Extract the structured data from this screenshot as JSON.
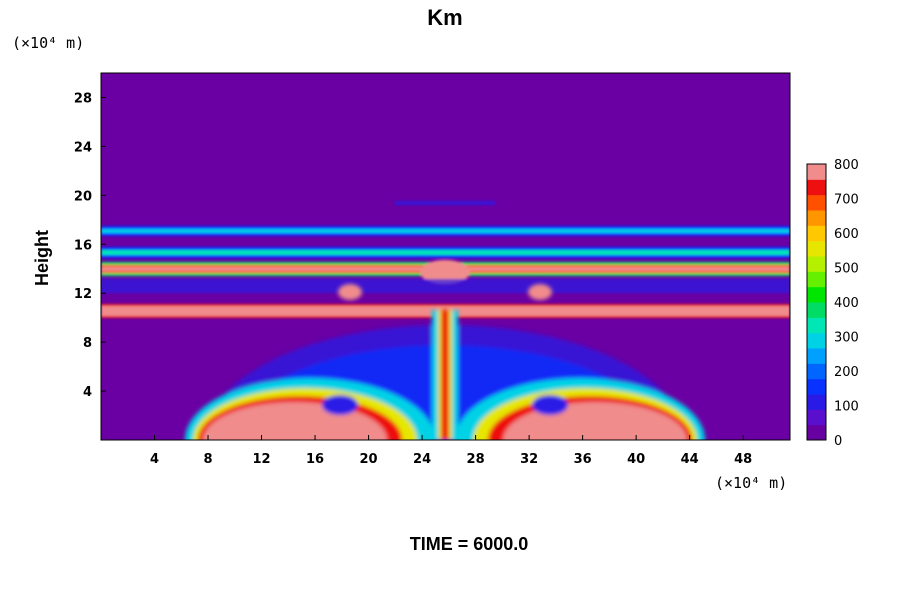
{
  "chart_data": {
    "type": "heatmap",
    "title": "Km",
    "ylabel": "Height",
    "y_unit": "(×10⁴ m)",
    "x_unit": "(×10⁴ m)",
    "xlim": [
      0,
      51.5
    ],
    "ylim": [
      0,
      30
    ],
    "x_ticks": [
      4,
      8,
      12,
      16,
      20,
      24,
      28,
      32,
      36,
      40,
      44,
      48
    ],
    "y_ticks": [
      4,
      8,
      12,
      16,
      20,
      24,
      28
    ],
    "grid": false,
    "colorbar": {
      "placement": "right",
      "range": [
        0,
        800
      ],
      "step": 50,
      "tick_labels": [
        0,
        100,
        200,
        300,
        400,
        500,
        600,
        700,
        800
      ],
      "colors": [
        "#6600a0",
        "#5a0fcf",
        "#2a1ae6",
        "#0a32ff",
        "#0066ff",
        "#00a0ff",
        "#00d2e6",
        "#00e6b4",
        "#00dc64",
        "#00e600",
        "#64f000",
        "#b4f000",
        "#e6e600",
        "#ffc800",
        "#ff9600",
        "#ff5000",
        "#ee1010",
        "#f08c8c"
      ]
    },
    "footer": "TIME = 6000.0"
  }
}
